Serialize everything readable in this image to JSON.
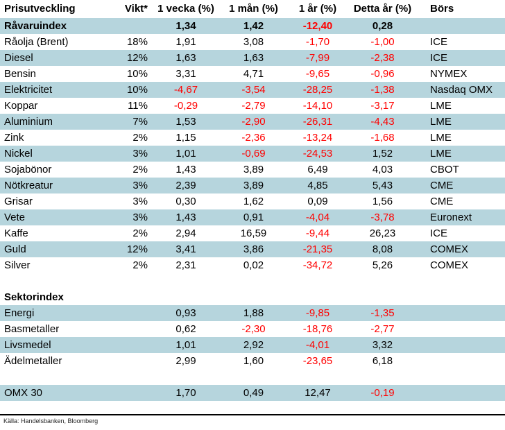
{
  "chart_data": {
    "type": "table",
    "title": "Prisutveckling",
    "columns": [
      "Prisutveckling",
      "Vikt*",
      "1 vecka (%)",
      "1 mån (%)",
      "1 år (%)",
      "Detta år (%)",
      "Börs"
    ],
    "rows": [
      {
        "name": "Råvaruindex",
        "vikt": "",
        "vecka": "1,34",
        "man": "1,42",
        "ar": "-12,40",
        "detta": "0,28",
        "bors": "",
        "blue": true,
        "bold": true
      },
      {
        "name": "Råolja (Brent)",
        "vikt": "18%",
        "vecka": "1,91",
        "man": "3,08",
        "ar": "-1,70",
        "detta": "-1,00",
        "bors": "ICE",
        "blue": false,
        "bold": false
      },
      {
        "name": "Diesel",
        "vikt": "12%",
        "vecka": "1,63",
        "man": "1,63",
        "ar": "-7,99",
        "detta": "-2,38",
        "bors": "ICE",
        "blue": true,
        "bold": false
      },
      {
        "name": "Bensin",
        "vikt": "10%",
        "vecka": "3,31",
        "man": "4,71",
        "ar": "-9,65",
        "detta": "-0,96",
        "bors": "NYMEX",
        "blue": false,
        "bold": false
      },
      {
        "name": "Elektricitet",
        "vikt": "10%",
        "vecka": "-4,67",
        "man": "-3,54",
        "ar": "-28,25",
        "detta": "-1,38",
        "bors": "Nasdaq OMX",
        "blue": true,
        "bold": false
      },
      {
        "name": "Koppar",
        "vikt": "11%",
        "vecka": "-0,29",
        "man": "-2,79",
        "ar": "-14,10",
        "detta": "-3,17",
        "bors": "LME",
        "blue": false,
        "bold": false
      },
      {
        "name": "Aluminium",
        "vikt": "7%",
        "vecka": "1,53",
        "man": "-2,90",
        "ar": "-26,31",
        "detta": "-4,43",
        "bors": "LME",
        "blue": true,
        "bold": false
      },
      {
        "name": "Zink",
        "vikt": "2%",
        "vecka": "1,15",
        "man": "-2,36",
        "ar": "-13,24",
        "detta": "-1,68",
        "bors": "LME",
        "blue": false,
        "bold": false
      },
      {
        "name": "Nickel",
        "vikt": "3%",
        "vecka": "1,01",
        "man": "-0,69",
        "ar": "-24,53",
        "detta": "1,52",
        "bors": "LME",
        "blue": true,
        "bold": false
      },
      {
        "name": "Sojabönor",
        "vikt": "2%",
        "vecka": "1,43",
        "man": "3,89",
        "ar": "6,49",
        "detta": "4,03",
        "bors": "CBOT",
        "blue": false,
        "bold": false
      },
      {
        "name": "Nötkreatur",
        "vikt": "3%",
        "vecka": "2,39",
        "man": "3,89",
        "ar": "4,85",
        "detta": "5,43",
        "bors": "CME",
        "blue": true,
        "bold": false
      },
      {
        "name": "Grisar",
        "vikt": "3%",
        "vecka": "0,30",
        "man": "1,62",
        "ar": "0,09",
        "detta": "1,56",
        "bors": "CME",
        "blue": false,
        "bold": false
      },
      {
        "name": "Vete",
        "vikt": "3%",
        "vecka": "1,43",
        "man": "0,91",
        "ar": "-4,04",
        "detta": "-3,78",
        "bors": "Euronext",
        "blue": true,
        "bold": false
      },
      {
        "name": "Kaffe",
        "vikt": "2%",
        "vecka": "2,94",
        "man": "16,59",
        "ar": "-9,44",
        "detta": "26,23",
        "bors": "ICE",
        "blue": false,
        "bold": false
      },
      {
        "name": "Guld",
        "vikt": "12%",
        "vecka": "3,41",
        "man": "3,86",
        "ar": "-21,35",
        "detta": "8,08",
        "bors": "COMEX",
        "blue": true,
        "bold": false
      },
      {
        "name": "Silver",
        "vikt": "2%",
        "vecka": "2,31",
        "man": "0,02",
        "ar": "-34,72",
        "detta": "5,26",
        "bors": "COMEX",
        "blue": false,
        "bold": false
      },
      {
        "name": "",
        "vikt": "",
        "vecka": "",
        "man": "",
        "ar": "",
        "detta": "",
        "bors": "",
        "blue": false,
        "bold": false
      },
      {
        "name": "Sektorindex",
        "vikt": "",
        "vecka": "",
        "man": "",
        "ar": "",
        "detta": "",
        "bors": "",
        "blue": false,
        "bold": true
      },
      {
        "name": "Energi",
        "vikt": "",
        "vecka": "0,93",
        "man": "1,88",
        "ar": "-9,85",
        "detta": "-1,35",
        "bors": "",
        "blue": true,
        "bold": false
      },
      {
        "name": "Basmetaller",
        "vikt": "",
        "vecka": "0,62",
        "man": "-2,30",
        "ar": "-18,76",
        "detta": "-2,77",
        "bors": "",
        "blue": false,
        "bold": false
      },
      {
        "name": "Livsmedel",
        "vikt": "",
        "vecka": "1,01",
        "man": "2,92",
        "ar": "-4,01",
        "detta": "3,32",
        "bors": "",
        "blue": true,
        "bold": false
      },
      {
        "name": "Ädelmetaller",
        "vikt": "",
        "vecka": "2,99",
        "man": "1,60",
        "ar": "-23,65",
        "detta": "6,18",
        "bors": "",
        "blue": false,
        "bold": false
      },
      {
        "name": "",
        "vikt": "",
        "vecka": "",
        "man": "",
        "ar": "",
        "detta": "",
        "bors": "",
        "blue": false,
        "bold": false
      },
      {
        "name": "OMX 30",
        "vikt": "",
        "vecka": "1,70",
        "man": "0,49",
        "ar": "12,47",
        "detta": "-0,19",
        "bors": "",
        "blue": true,
        "bold": false
      }
    ],
    "colors": {
      "row_blue": "#b6d5dd",
      "negative_text": "#ff0000",
      "text": "#000000"
    },
    "source": "Källa: Handelsbanken, Bloomberg"
  }
}
